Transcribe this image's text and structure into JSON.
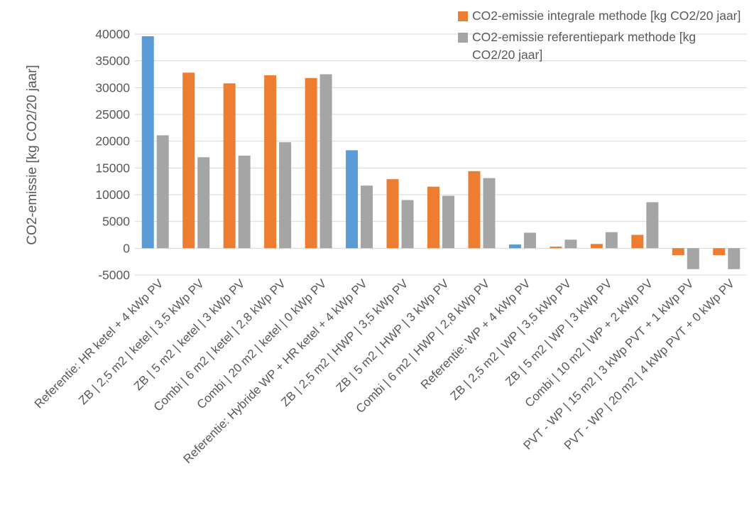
{
  "chart_data": {
    "type": "bar",
    "ylabel": "CO2-emissie [kg CO2/20 jaar]",
    "xlabel": "",
    "ylim": [
      -5000,
      40000
    ],
    "yticks": [
      -5000,
      0,
      5000,
      10000,
      15000,
      20000,
      25000,
      30000,
      35000,
      40000
    ],
    "grid": true,
    "legend_position": "top-right",
    "categories": [
      "Referentie: HR ketel + 4 kWp PV",
      "ZB | 2,5 m2 |  ketel | 3,5 kWp PV",
      "ZB | 5 m2 |  ketel | 3 kWp PV",
      "Combi |  6 m2 | ketel  | 2,8 kWp PV",
      "Combi | 20 m2 | ketel  | 0 kWp PV",
      "Referentie: Hybride WP + HR ketel + 4 kWp PV",
      "ZB | 2,5 m2 |  HWP | 3,5 kWp PV",
      "ZB | 5 m2 |  HWP | 3 kWp PV",
      "Combi |  6 m2 | HWP  | 2,8 kWp PV",
      "Referentie: WP + 4 kWp PV",
      "ZB | 2,5 m2 |  WP | 3,5 kWp PV",
      "ZB | 5 m2 |  WP | 3 kWp PV",
      "Combi | 10 m2 | WP + 2 kWp PV",
      "PVT - WP | 15 m2 | 3 kWp PVT + 1 kWp PV",
      "PVT - WP | 20 m2 | 4 kWp PVT + 0 kWp PV"
    ],
    "series": [
      {
        "name": "CO2-emissie integrale methode [kg CO2/20 jaar]",
        "color": "#ED7D31",
        "values": [
          39600,
          32800,
          30800,
          32300,
          31800,
          18300,
          12900,
          11500,
          14400,
          700,
          300,
          800,
          2500,
          -1300,
          -1300
        ]
      },
      {
        "name": "CO2-emissie referentiepark methode [kg CO2/20 jaar]",
        "color": "#A5A5A5",
        "values": [
          21100,
          17000,
          17300,
          19800,
          32500,
          11700,
          9000,
          9800,
          13100,
          2900,
          1600,
          3000,
          8600,
          -3900,
          -3900
        ]
      }
    ],
    "reference_bar_color": "#5B9BD5",
    "reference_indices": [
      0,
      5,
      9
    ]
  },
  "legend": {
    "items": [
      {
        "label": "CO2-emissie integrale methode [kg CO2/20 jaar]",
        "color": "#ED7D31"
      },
      {
        "label": "CO2-emissie referentiepark methode [kg CO2/20 jaar]",
        "color": "#A5A5A5"
      }
    ]
  }
}
